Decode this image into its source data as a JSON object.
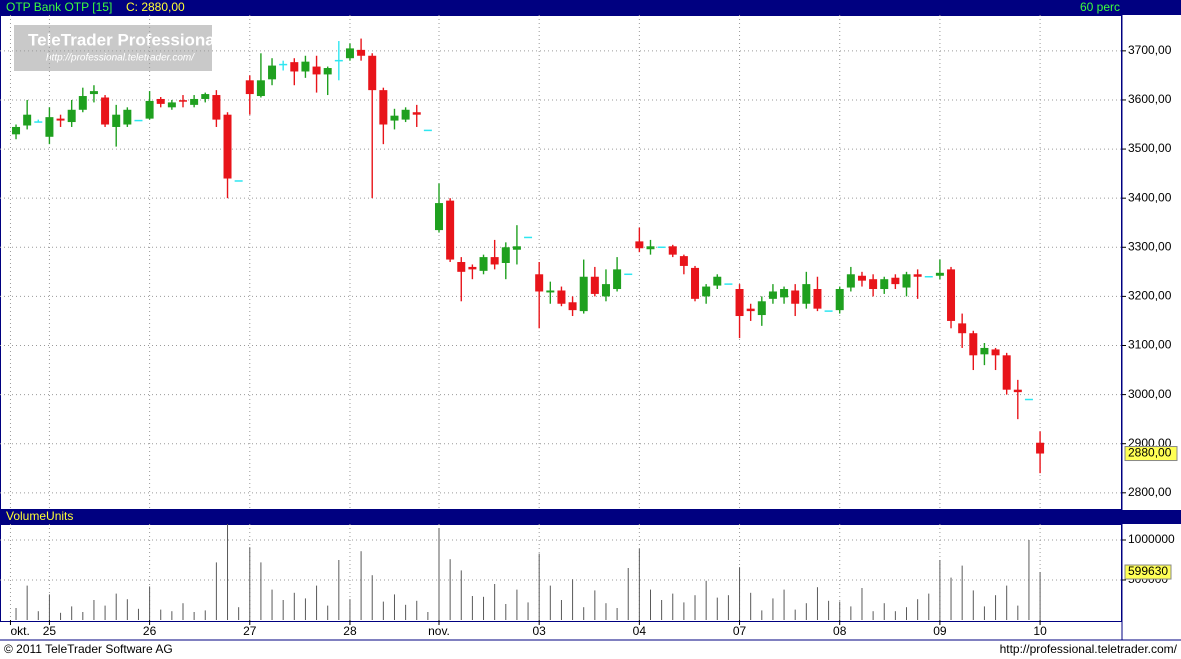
{
  "header": {
    "symbol": "OTP Bank OTP [15]",
    "close_label": "C: 2880,00",
    "interval": "60 perc"
  },
  "watermark": {
    "title": "TeleTrader Professional",
    "url": "http://professional.teletrader.com/"
  },
  "footer": {
    "copyright": "© 2011 TeleTrader Software AG",
    "url": "http://professional.teletrader.com/"
  },
  "chart_data": [
    {
      "type": "candlestick",
      "up_color": "#1fa01f",
      "down_color": "#e8141a",
      "flat_color": "#2ee6f0",
      "grid": true,
      "last_label": "2880,00",
      "ylim": [
        2765,
        3773
      ],
      "yticks": [
        {
          "value": 2800,
          "label": "2800,00"
        },
        {
          "value": 2900,
          "label": "2900,00"
        },
        {
          "value": 3000,
          "label": "3000,00"
        },
        {
          "value": 3100,
          "label": "3100,00"
        },
        {
          "value": 3200,
          "label": "3200,00"
        },
        {
          "value": 3300,
          "label": "3300,00"
        },
        {
          "value": 3400,
          "label": "3400,00"
        },
        {
          "value": 3500,
          "label": "3500,00"
        },
        {
          "value": 3600,
          "label": "3600,00"
        },
        {
          "value": 3700,
          "label": "3700,00"
        }
      ],
      "open": [
        3530,
        3548,
        3555,
        3525,
        3562,
        3555,
        3580,
        3612,
        3605,
        3545,
        3550,
        3558,
        3562,
        3602,
        3585,
        3598,
        3590,
        3602,
        3610,
        3570,
        3435,
        3640,
        3608,
        3642,
        3672,
        3677,
        3658,
        3668,
        3652,
        3680,
        3685,
        3702,
        3690,
        3620,
        3558,
        3560,
        3575,
        3538,
        3335,
        3395,
        3270,
        3260,
        3252,
        3280,
        3268,
        3295,
        3320,
        3245,
        3208,
        3212,
        3188,
        3170,
        3240,
        3200,
        3215,
        3245,
        3312,
        3296,
        3300,
        3302,
        3282,
        3258,
        3200,
        3222,
        3225,
        3215,
        3175,
        3162,
        3195,
        3198,
        3212,
        3185,
        3215,
        3170,
        3172,
        3218,
        3242,
        3235,
        3215,
        3238,
        3218,
        3245,
        3240,
        3242,
        3255,
        3145,
        3125,
        3082,
        3092,
        3080,
        3010,
        2990,
        2902
      ],
      "high": [
        3550,
        3600,
        3560,
        3585,
        3570,
        3600,
        3625,
        3630,
        3610,
        3590,
        3585,
        3558,
        3618,
        3606,
        3600,
        3610,
        3610,
        3615,
        3620,
        3575,
        3435,
        3650,
        3695,
        3685,
        3680,
        3685,
        3690,
        3690,
        3668,
        3720,
        3715,
        3725,
        3695,
        3625,
        3582,
        3585,
        3590,
        3538,
        3430,
        3400,
        3280,
        3265,
        3285,
        3315,
        3310,
        3345,
        3320,
        3270,
        3230,
        3220,
        3200,
        3275,
        3260,
        3255,
        3280,
        3245,
        3340,
        3315,
        3300,
        3305,
        3285,
        3262,
        3225,
        3245,
        3225,
        3225,
        3185,
        3200,
        3225,
        3220,
        3225,
        3250,
        3240,
        3170,
        3220,
        3260,
        3250,
        3245,
        3240,
        3245,
        3250,
        3255,
        3240,
        3275,
        3260,
        3165,
        3130,
        3105,
        3095,
        3085,
        3030,
        2990,
        2925
      ],
      "low": [
        3520,
        3540,
        3555,
        3510,
        3545,
        3545,
        3575,
        3595,
        3545,
        3505,
        3545,
        3558,
        3560,
        3585,
        3580,
        3585,
        3585,
        3595,
        3545,
        3400,
        3435,
        3570,
        3605,
        3630,
        3660,
        3630,
        3645,
        3615,
        3610,
        3640,
        3680,
        3680,
        3400,
        3510,
        3540,
        3555,
        3545,
        3538,
        3330,
        3270,
        3190,
        3235,
        3245,
        3255,
        3235,
        3265,
        3320,
        3135,
        3185,
        3180,
        3160,
        3165,
        3200,
        3190,
        3210,
        3245,
        3290,
        3285,
        3300,
        3280,
        3245,
        3190,
        3185,
        3215,
        3225,
        3115,
        3150,
        3140,
        3185,
        3185,
        3160,
        3175,
        3170,
        3170,
        3165,
        3210,
        3220,
        3200,
        3205,
        3215,
        3200,
        3195,
        3240,
        3235,
        3135,
        3095,
        3050,
        3060,
        3050,
        3000,
        2950,
        2990,
        2840
      ],
      "close": [
        3545,
        3570,
        3555,
        3565,
        3558,
        3580,
        3608,
        3618,
        3550,
        3570,
        3580,
        3558,
        3598,
        3592,
        3595,
        3595,
        3602,
        3612,
        3560,
        3440,
        3435,
        3612,
        3640,
        3670,
        3672,
        3658,
        3678,
        3652,
        3665,
        3680,
        3705,
        3690,
        3620,
        3550,
        3568,
        3580,
        3570,
        3538,
        3390,
        3275,
        3250,
        3255,
        3280,
        3265,
        3300,
        3302,
        3320,
        3210,
        3212,
        3185,
        3172,
        3240,
        3205,
        3225,
        3255,
        3245,
        3298,
        3302,
        3300,
        3285,
        3262,
        3195,
        3220,
        3240,
        3225,
        3160,
        3170,
        3190,
        3210,
        3215,
        3185,
        3225,
        3175,
        3170,
        3215,
        3245,
        3232,
        3215,
        3235,
        3225,
        3245,
        3240,
        3240,
        3248,
        3150,
        3125,
        3080,
        3095,
        3080,
        3010,
        3005,
        2990,
        2880
      ]
    },
    {
      "type": "volume",
      "title": "VolumeUnits",
      "color": "#5a5a5a",
      "grid": true,
      "ylim": [
        0,
        1200000
      ],
      "yticks": [
        500000,
        1000000
      ],
      "xlim": [
        -1.44,
        99.36
      ],
      "xticks": [
        {
          "value": -0.5,
          "label": "okt."
        },
        {
          "value": 3,
          "label": "25"
        },
        {
          "value": 12,
          "label": "26"
        },
        {
          "value": 21,
          "label": "27"
        },
        {
          "value": 30,
          "label": "28"
        },
        {
          "value": 38,
          "label": "nov."
        },
        {
          "value": 47,
          "label": "03"
        },
        {
          "value": 56,
          "label": "04"
        },
        {
          "value": 65,
          "label": "07"
        },
        {
          "value": 74,
          "label": "08"
        },
        {
          "value": 83,
          "label": "09"
        },
        {
          "value": 92,
          "label": "10"
        }
      ],
      "values": [
        150000,
        430000,
        110000,
        320000,
        90000,
        170000,
        100000,
        250000,
        180000,
        330000,
        260000,
        140000,
        420000,
        130000,
        110000,
        210000,
        100000,
        120000,
        720000,
        1200000,
        160000,
        910000,
        720000,
        380000,
        250000,
        340000,
        270000,
        430000,
        180000,
        750000,
        260000,
        860000,
        560000,
        230000,
        320000,
        190000,
        240000,
        100000,
        1150000,
        760000,
        620000,
        300000,
        290000,
        450000,
        200000,
        380000,
        220000,
        830000,
        430000,
        250000,
        510000,
        160000,
        370000,
        210000,
        150000,
        650000,
        890000,
        380000,
        250000,
        330000,
        220000,
        310000,
        490000,
        280000,
        310000,
        660000,
        340000,
        120000,
        270000,
        380000,
        130000,
        210000,
        410000,
        240000,
        230000,
        170000,
        400000,
        110000,
        210000,
        110000,
        160000,
        260000,
        330000,
        750000,
        530000,
        680000,
        370000,
        170000,
        310000,
        430000,
        180000,
        1000000,
        599630
      ]
    }
  ]
}
